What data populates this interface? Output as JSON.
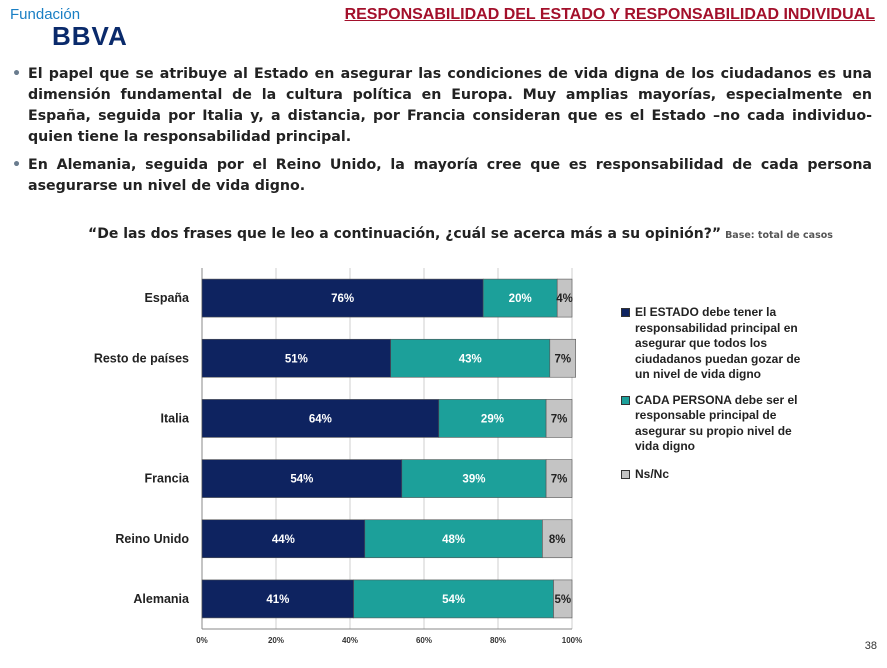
{
  "header": {
    "logo_foundation": "Fundación",
    "logo_brand": "BBVA",
    "title": "RESPONSABILIDAD DEL ESTADO Y RESPONSABILIDAD INDIVIDUAL"
  },
  "bullets": [
    "El papel que se atribuye al Estado en asegurar las condiciones de vida digna de los ciudadanos es una dimensión fundamental de la cultura política en Europa. Muy amplias mayorías, especialmente en España, seguida por Italia y, a distancia, por Francia consideran que es el Estado –no cada individuo- quien tiene la responsabilidad principal.",
    "En Alemania, seguida por el Reino Unido, la mayoría cree que es responsabilidad de cada persona asegurarse un nivel de vida digno."
  ],
  "question": "“De las dos frases que le leo a continuación, ¿cuál se acerca más a su opinión?”",
  "base_note": "Base: total de casos",
  "page_number": "38",
  "colors": {
    "estado": "#0e2360",
    "persona": "#1ca09a",
    "nsnc": "#c4c4c4",
    "title": "#a3102b"
  },
  "chart_data": {
    "type": "bar",
    "orientation": "horizontal",
    "stacked": true,
    "categories": [
      "España",
      "Resto de países",
      "Italia",
      "Francia",
      "Reino Unido",
      "Alemania"
    ],
    "series": [
      {
        "name": "El ESTADO debe tener la responsabilidad principal en asegurar que todos los ciudadanos puedan gozar de un nivel de vida digno",
        "values": [
          76,
          51,
          64,
          54,
          44,
          41
        ]
      },
      {
        "name": "CADA PERSONA debe ser el responsable principal de asegurar su propio nivel de vida digno",
        "values": [
          20,
          43,
          29,
          39,
          48,
          54
        ]
      },
      {
        "name": "Ns/Nc",
        "values": [
          4,
          7,
          7,
          7,
          8,
          5
        ]
      }
    ],
    "xticks": [
      "0%",
      "20%",
      "40%",
      "60%",
      "80%",
      "100%"
    ],
    "xlim": [
      0,
      100
    ],
    "grid": true,
    "legend": "right"
  }
}
